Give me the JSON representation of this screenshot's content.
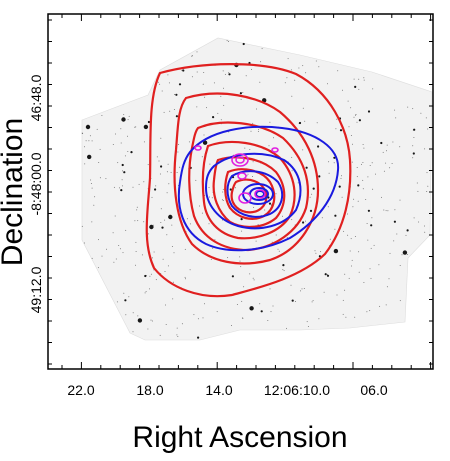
{
  "axes": {
    "xlabel": "Right Ascension",
    "ylabel": "Declination",
    "x_tick_labels": [
      "22.0",
      "18.0",
      "14.0",
      "12:06:10.0",
      "06.0"
    ],
    "y_tick_labels": [
      "46:48.0",
      "-8:48:00.0",
      "49:12.0"
    ]
  },
  "colors": {
    "frame": "#000000",
    "contour_red": "#e02020",
    "contour_blue": "#1a1adf",
    "contour_magenta": "#e020e0",
    "stars": "#000000",
    "background_field": "#f2f2f2"
  }
}
